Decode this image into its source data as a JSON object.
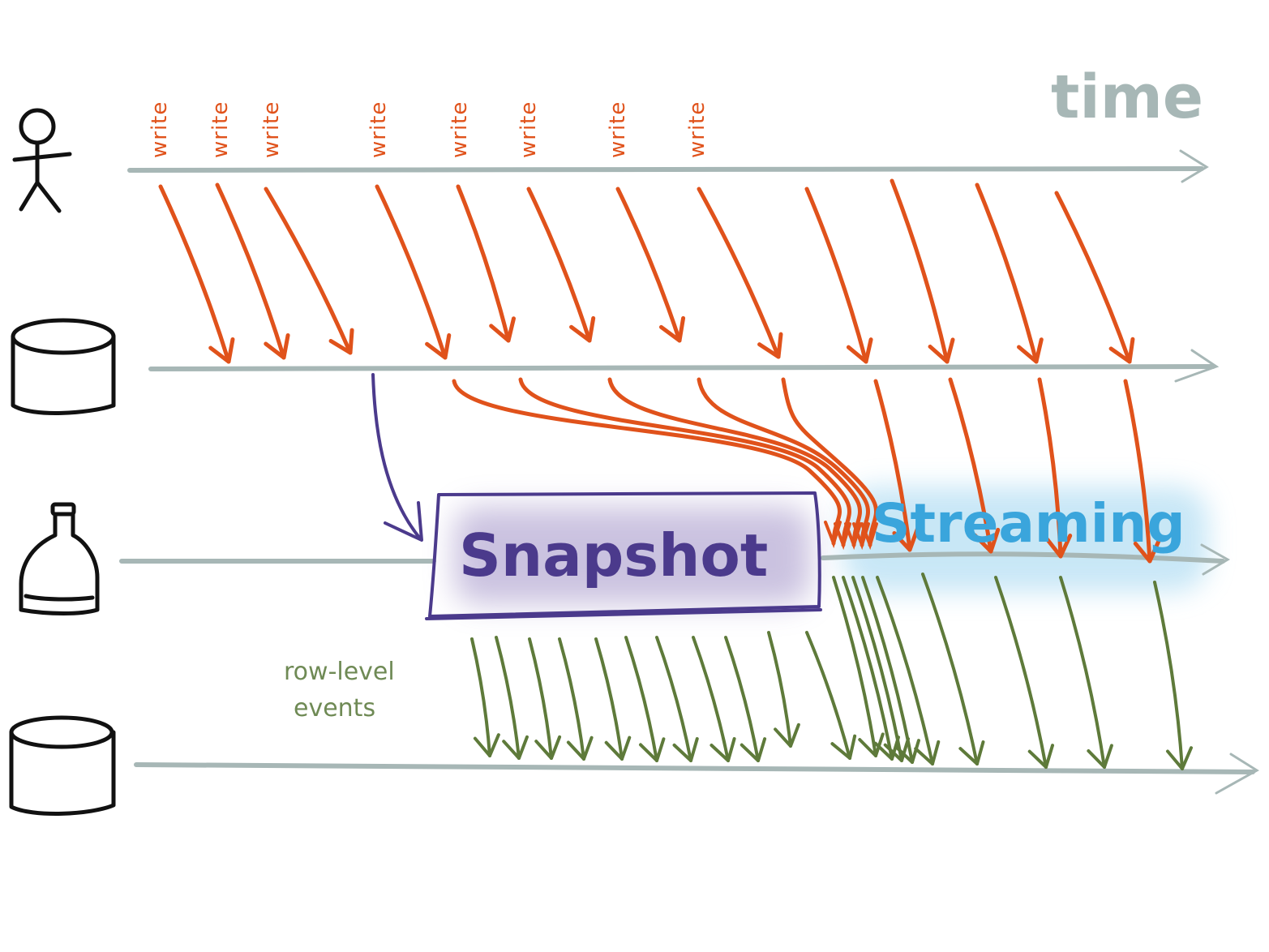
{
  "time_label": "time",
  "write_labels": [
    "write",
    "write",
    "write",
    "write",
    "write",
    "write",
    "write",
    "write"
  ],
  "snapshot_label": "Snapshot",
  "streaming_label": "Streaming",
  "events_label": [
    "row-level",
    "events"
  ],
  "colors": {
    "timeline": "#a7b7b6",
    "write_arrow": "#e0521b",
    "snapshot": "#4b3a8c",
    "snapshot_glow": "#b9aed6",
    "streaming": "#3aa5dc",
    "streaming_glow": "#bfe3f5",
    "event_arrow": "#5e7a3a",
    "icon": "#111111"
  },
  "icons": [
    "user-stick-figure-icon",
    "source-database-icon",
    "connector-bottle-icon",
    "target-database-icon"
  ]
}
